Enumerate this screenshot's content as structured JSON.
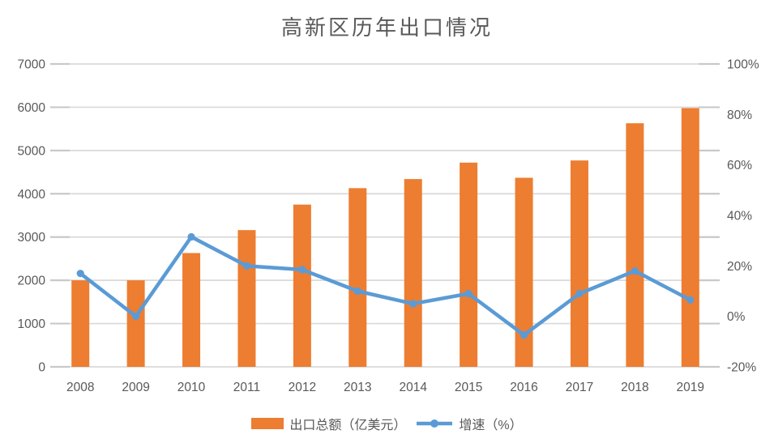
{
  "title": "高新区历年出口情况",
  "legend": {
    "items": [
      {
        "label": "出口总额（亿美元）",
        "type": "bar",
        "color": "#ED7D31"
      },
      {
        "label": "增速（%）",
        "type": "line",
        "color": "#5B9BD5"
      }
    ]
  },
  "chart_data": {
    "type": "combo-bar-line",
    "title": "高新区历年出口情况",
    "categories": [
      "2008",
      "2009",
      "2010",
      "2011",
      "2012",
      "2013",
      "2014",
      "2015",
      "2016",
      "2017",
      "2018",
      "2019"
    ],
    "series": [
      {
        "name": "出口总额（亿美元）",
        "type": "bar",
        "axis": "left",
        "color": "#ED7D31",
        "values": [
          2000,
          2000,
          2630,
          3160,
          3750,
          4130,
          4340,
          4720,
          4370,
          4770,
          5630,
          5980
        ]
      },
      {
        "name": "增速（%）",
        "type": "line",
        "axis": "right",
        "color": "#5B9BD5",
        "values": [
          17,
          0,
          31.5,
          20,
          18.5,
          10,
          5,
          9,
          -7.4,
          9,
          18,
          6.5
        ]
      }
    ],
    "left_axis": {
      "min": 0,
      "max": 7000,
      "step": 1000,
      "tick_labels": [
        "0",
        "1000",
        "2000",
        "3000",
        "4000",
        "5000",
        "6000",
        "7000"
      ]
    },
    "right_axis": {
      "min": -20,
      "max": 100,
      "step": 20,
      "tick_labels": [
        "-20%",
        "0%",
        "20%",
        "40%",
        "60%",
        "80%",
        "100%"
      ]
    },
    "grid": true,
    "legend_position": "bottom"
  },
  "colors": {
    "bar": "#ED7D31",
    "line": "#5B9BD5",
    "gridline": "#D9D9D9",
    "tick": "#C9C9C9",
    "text": "#595959"
  }
}
